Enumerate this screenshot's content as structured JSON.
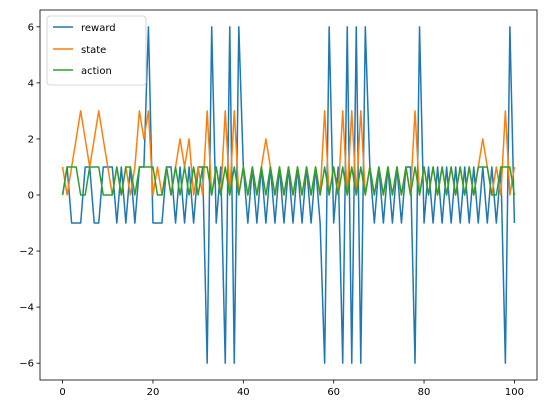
{
  "chart_data": {
    "type": "line",
    "title": "",
    "xlabel": "",
    "ylabel": "",
    "xlim": [
      -5,
      105
    ],
    "ylim": [
      -6.6,
      6.6
    ],
    "xticks": [
      0,
      20,
      40,
      60,
      80,
      100
    ],
    "yticks": [
      -6,
      -4,
      -2,
      0,
      2,
      4,
      6
    ],
    "grid": false,
    "legend_position": "top-left",
    "x": [
      0,
      1,
      2,
      3,
      4,
      5,
      6,
      7,
      8,
      9,
      10,
      11,
      12,
      13,
      14,
      15,
      16,
      17,
      18,
      19,
      20,
      21,
      22,
      23,
      24,
      25,
      26,
      27,
      28,
      29,
      30,
      31,
      32,
      33,
      34,
      35,
      36,
      37,
      38,
      39,
      40,
      41,
      42,
      43,
      44,
      45,
      46,
      47,
      48,
      49,
      50,
      51,
      52,
      53,
      54,
      55,
      56,
      57,
      58,
      59,
      60,
      61,
      62,
      63,
      64,
      65,
      66,
      67,
      68,
      69,
      70,
      71,
      72,
      73,
      74,
      75,
      76,
      77,
      78,
      79,
      80,
      81,
      82,
      83,
      84,
      85,
      86,
      87,
      88,
      89,
      90,
      91,
      92,
      93,
      94,
      95,
      96,
      97,
      98,
      99,
      100
    ],
    "series": [
      {
        "name": "reward",
        "color": "#1f77b4",
        "values": [
          0,
          1,
          -1,
          -1,
          -1,
          1,
          1,
          -1,
          -1,
          1,
          1,
          1,
          -1,
          1,
          -1,
          1,
          -1,
          1,
          1,
          6,
          -1,
          -1,
          -1,
          1,
          1,
          -1,
          1,
          -1,
          1,
          -1,
          1,
          1,
          -6,
          6,
          -1,
          1,
          -6,
          6,
          -6,
          6,
          1,
          -1,
          1,
          -1,
          1,
          -1,
          1,
          -1,
          1,
          -1,
          1,
          -1,
          1,
          -1,
          1,
          -1,
          1,
          -1,
          -6,
          6,
          -1,
          1,
          -6,
          6,
          -6,
          6,
          -6,
          6,
          1,
          -1,
          1,
          -1,
          1,
          -1,
          1,
          -1,
          1,
          1,
          -6,
          6,
          -1,
          1,
          -1,
          1,
          -1,
          1,
          -1,
          1,
          -1,
          1,
          -1,
          1,
          -1,
          1,
          -1,
          1,
          -1,
          1,
          -6,
          6,
          -1
        ]
      },
      {
        "name": "state",
        "color": "#ff7f0e",
        "values": [
          1,
          0,
          1,
          2,
          3,
          2,
          1,
          2,
          3,
          2,
          1,
          0,
          1,
          0,
          1,
          0,
          1,
          3,
          2,
          3,
          0,
          1,
          0,
          1,
          0,
          1,
          2,
          1,
          2,
          0,
          1,
          0,
          3,
          0,
          1,
          0,
          3,
          0,
          3,
          0,
          1,
          0,
          1,
          0,
          1,
          2,
          1,
          0,
          1,
          0,
          1,
          0,
          1,
          0,
          1,
          0,
          1,
          0,
          3,
          0,
          1,
          0,
          3,
          0,
          3,
          0,
          3,
          0,
          1,
          0,
          1,
          0,
          1,
          0,
          1,
          0,
          1,
          0,
          3,
          0,
          1,
          0,
          1,
          0,
          1,
          0,
          1,
          0,
          1,
          0,
          1,
          0,
          1,
          2,
          1,
          0,
          1,
          0,
          3,
          0,
          1
        ]
      },
      {
        "name": "action",
        "color": "#2ca02c",
        "values": [
          0,
          1,
          1,
          1,
          0,
          0,
          1,
          1,
          1,
          0,
          0,
          0,
          1,
          0,
          1,
          1,
          0,
          1,
          1,
          1,
          1,
          0,
          0,
          1,
          0,
          1,
          0,
          1,
          0,
          1,
          0,
          1,
          1,
          0,
          1,
          0,
          1,
          0,
          1,
          0,
          1,
          0,
          1,
          0,
          1,
          0,
          1,
          0,
          1,
          0,
          1,
          0,
          1,
          0,
          1,
          0,
          1,
          0,
          1,
          0,
          1,
          0,
          1,
          0,
          1,
          0,
          1,
          0,
          1,
          0,
          1,
          0,
          1,
          0,
          1,
          0,
          1,
          0,
          1,
          0,
          1,
          0,
          1,
          0,
          1,
          0,
          1,
          0,
          1,
          0,
          1,
          0,
          1,
          1,
          1,
          0,
          0,
          1,
          1,
          1,
          0
        ]
      }
    ]
  }
}
